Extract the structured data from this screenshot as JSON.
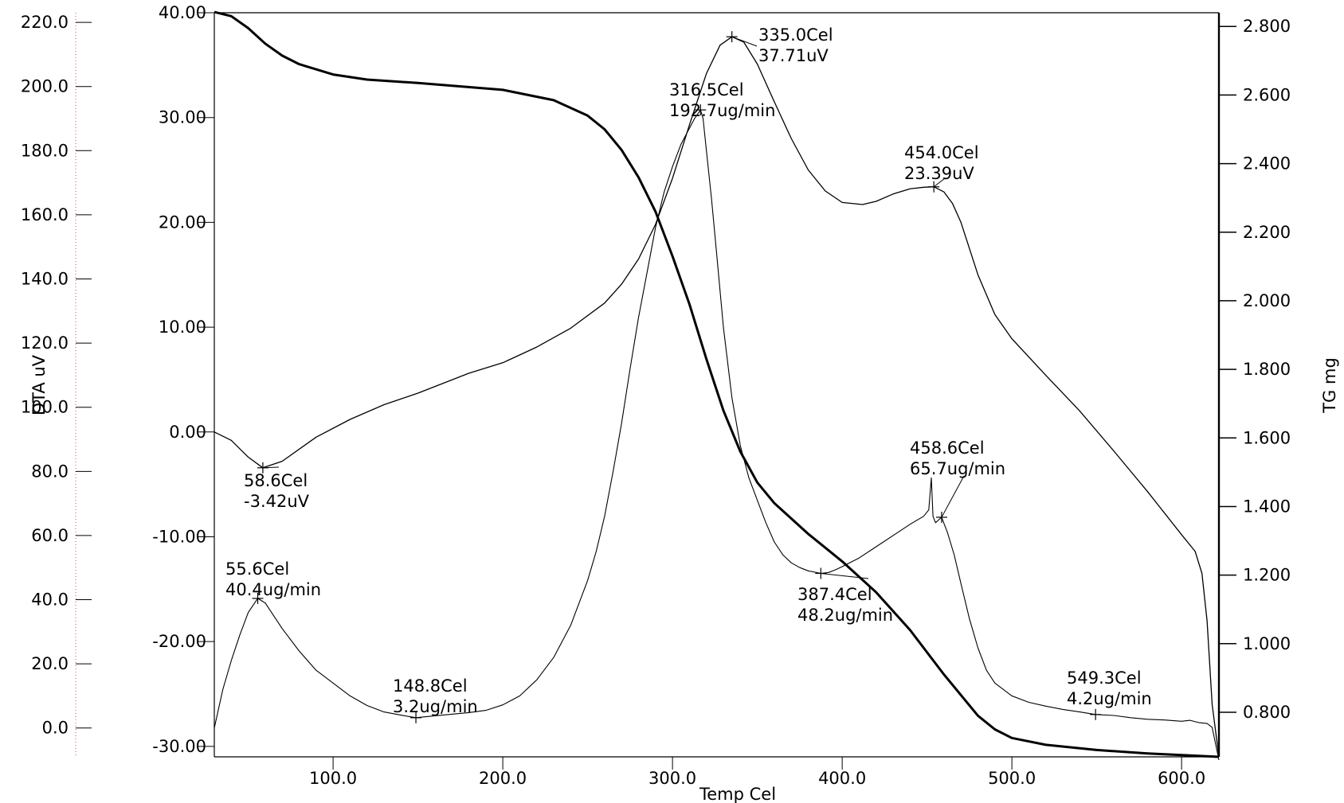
{
  "chart_data": {
    "type": "line",
    "x_axis": {
      "label": "Temp Cel",
      "range": [
        30,
        622
      ],
      "ticks": [
        100,
        200,
        300,
        400,
        500,
        600
      ],
      "tick_labels": [
        "100.0",
        "200.0",
        "300.0",
        "400.0",
        "500.0",
        "600.0"
      ]
    },
    "y_axes": {
      "dta_uv": {
        "range": [
          -31,
          40
        ],
        "ticks": [
          40,
          30,
          20,
          10,
          0,
          -10,
          -20,
          -30
        ],
        "tick_labels": [
          "40.00",
          "30.00",
          "20.00",
          "10.00",
          "0.00",
          "-10.00",
          "-20.00",
          "-30.00"
        ]
      },
      "dtg_ug_min": {
        "label": "DTA uV",
        "range": [
          -9,
          223
        ],
        "ticks": [
          220,
          200,
          180,
          160,
          140,
          120,
          100,
          80,
          60,
          40,
          20,
          0
        ],
        "tick_labels": [
          "220.0",
          "200.0",
          "180.0",
          "160.0",
          "140.0",
          "120.0",
          "100.0",
          "80.0",
          "60.0",
          "40.0",
          "20.0",
          "0.0"
        ]
      },
      "tg_mg": {
        "label": "TG mg",
        "range": [
          0.67,
          2.84
        ],
        "ticks": [
          2.8,
          2.6,
          2.4,
          2.2,
          2.0,
          1.8,
          1.6,
          1.4,
          1.2,
          1.0,
          0.8
        ],
        "tick_labels": [
          "2.800",
          "2.600",
          "2.400",
          "2.200",
          "2.000",
          "1.800",
          "1.600",
          "1.400",
          "1.200",
          "1.000",
          "0.800"
        ]
      }
    },
    "series": [
      {
        "axis": "tg_mg",
        "x": [
          30,
          40,
          50,
          60,
          70,
          80,
          100,
          120,
          150,
          200,
          230,
          250,
          260,
          270,
          280,
          290,
          300,
          310,
          320,
          330,
          340,
          350,
          360,
          380,
          400,
          420,
          440,
          460,
          480,
          490,
          500,
          520,
          550,
          580,
          600,
          622
        ],
        "y": [
          2.842,
          2.83,
          2.795,
          2.75,
          2.715,
          2.69,
          2.66,
          2.645,
          2.635,
          2.615,
          2.585,
          2.54,
          2.5,
          2.44,
          2.36,
          2.26,
          2.13,
          1.99,
          1.83,
          1.68,
          1.56,
          1.47,
          1.41,
          1.32,
          1.24,
          1.15,
          1.04,
          0.91,
          0.79,
          0.75,
          0.725,
          0.705,
          0.69,
          0.68,
          0.675,
          0.67
        ]
      },
      {
        "axis": "dta_uv",
        "x": [
          30,
          40,
          50,
          58.6,
          70,
          90,
          110,
          130,
          150,
          180,
          200,
          220,
          240,
          260,
          270,
          280,
          290,
          300,
          310,
          320,
          328,
          335,
          342,
          350,
          360,
          370,
          380,
          390,
          400,
          412,
          420,
          430,
          440,
          448,
          454,
          460,
          465,
          470,
          480,
          490,
          500,
          520,
          540,
          560,
          580,
          600,
          608,
          612,
          615,
          618,
          622
        ],
        "y": [
          0,
          -0.8,
          -2.4,
          -3.42,
          -2.8,
          -0.5,
          1.2,
          2.6,
          3.7,
          5.6,
          6.6,
          8.1,
          9.9,
          12.3,
          14.1,
          16.5,
          19.8,
          24.2,
          29.3,
          34.2,
          36.9,
          37.71,
          37.2,
          35.1,
          31.5,
          28.0,
          25.0,
          23.0,
          21.9,
          21.7,
          22.0,
          22.7,
          23.2,
          23.35,
          23.39,
          22.9,
          21.8,
          20.0,
          15.0,
          11.2,
          8.9,
          5.4,
          2.0,
          -1.8,
          -5.7,
          -9.8,
          -11.4,
          -13.5,
          -18.0,
          -26.0,
          -31.0
        ]
      },
      {
        "axis": "dtg_ug_min",
        "x": [
          30,
          35,
          40,
          45,
          50,
          55.6,
          60,
          70,
          80,
          90,
          100,
          110,
          120,
          130,
          140,
          148.8,
          160,
          170,
          180,
          190,
          200,
          210,
          220,
          230,
          240,
          250,
          255,
          260,
          265,
          270,
          275,
          280,
          285,
          290,
          295,
          300,
          305,
          310,
          313,
          316.5,
          318,
          320,
          323,
          326,
          330,
          335,
          340,
          345,
          350,
          355,
          360,
          365,
          370,
          375,
          380,
          387.4,
          392,
          396,
          400,
          410,
          420,
          430,
          440,
          448,
          451,
          452.5,
          453.5,
          455,
          458.6,
          462,
          466,
          470,
          475,
          480,
          485,
          490,
          495,
          500,
          510,
          520,
          530,
          540,
          549.3,
          560,
          570,
          580,
          590,
          600,
          605,
          610,
          615,
          618,
          622
        ],
        "y": [
          0,
          12,
          21,
          29,
          36,
          40.4,
          39,
          31,
          24,
          18,
          14,
          10,
          7,
          5,
          4,
          3.2,
          3.8,
          4.3,
          4.8,
          5.5,
          7.2,
          10,
          15,
          22,
          32,
          46,
          55,
          66,
          80,
          95,
          112,
          128,
          142,
          156,
          167,
          175,
          182,
          187,
          190,
          192.7,
          190,
          180,
          165,
          148,
          125,
          103,
          88,
          78,
          71,
          64,
          58,
          54,
          51.5,
          50,
          49,
          48.2,
          48.5,
          49.3,
          50.3,
          53,
          56.5,
          60,
          63.5,
          66,
          68,
          78,
          66,
          64,
          65.7,
          61,
          54,
          45,
          34,
          25,
          18,
          14,
          12,
          10,
          8,
          6.8,
          5.8,
          5.0,
          4.2,
          3.9,
          3.2,
          2.7,
          2.5,
          2.1,
          2.4,
          1.7,
          1.4,
          0.2,
          -10
        ]
      }
    ],
    "annotations": [
      {
        "axis": "dta_uv",
        "x": 58.6,
        "y": -3.42,
        "line1": "58.6Cel",
        "line2": "-3.42uV"
      },
      {
        "axis": "dta_uv",
        "x": 335.0,
        "y": 37.71,
        "line1": "335.0Cel",
        "line2": "37.71uV"
      },
      {
        "axis": "dta_uv",
        "x": 454.0,
        "y": 23.39,
        "line1": "454.0Cel",
        "line2": "23.39uV"
      },
      {
        "axis": "dtg_ug_min",
        "x": 316.5,
        "y": 192.7,
        "line1": "316.5Cel",
        "line2": "192.7ug/min"
      },
      {
        "axis": "dtg_ug_min",
        "x": 55.6,
        "y": 40.4,
        "line1": "55.6Cel",
        "line2": "40.4ug/min"
      },
      {
        "axis": "dtg_ug_min",
        "x": 148.8,
        "y": 3.2,
        "line1": "148.8Cel",
        "line2": "3.2ug/min"
      },
      {
        "axis": "dtg_ug_min",
        "x": 387.4,
        "y": 48.2,
        "line1": "387.4Cel",
        "line2": "48.2ug/min"
      },
      {
        "axis": "dtg_ug_min",
        "x": 458.6,
        "y": 65.7,
        "line1": "458.6Cel",
        "line2": "65.7ug/min"
      },
      {
        "axis": "dtg_ug_min",
        "x": 549.3,
        "y": 4.2,
        "line1": "549.3Cel",
        "line2": "4.2ug/min"
      }
    ],
    "grid": false,
    "legend": "none"
  }
}
